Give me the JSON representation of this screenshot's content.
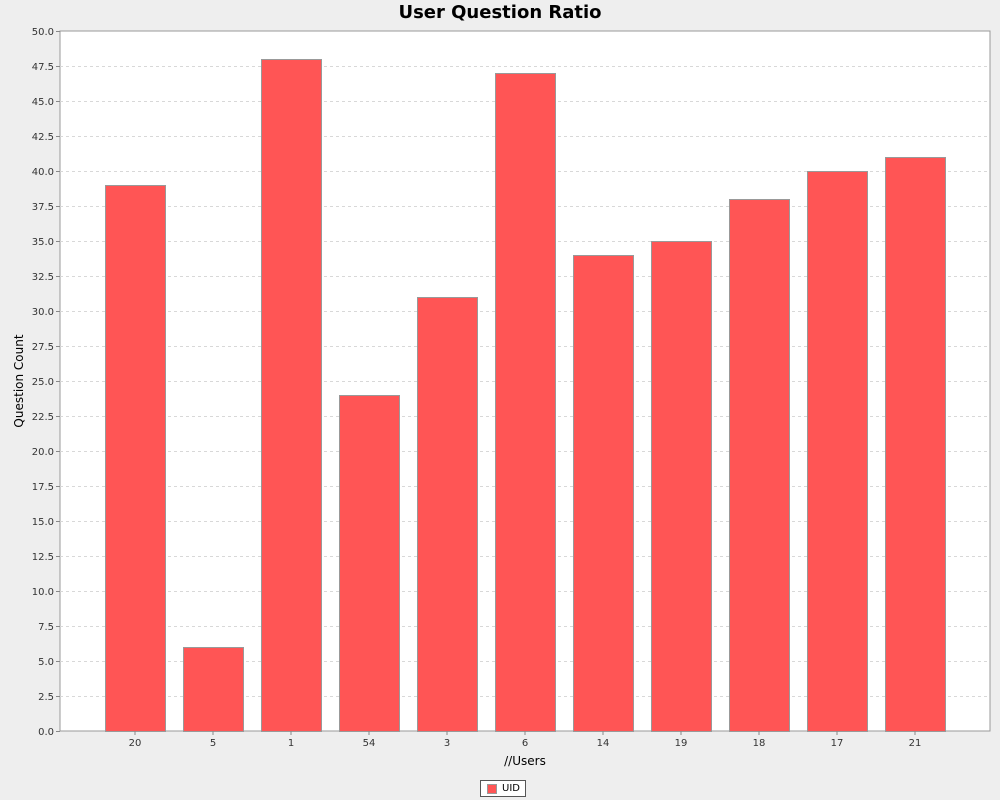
{
  "chart_data": {
    "type": "bar",
    "title": "User Question Ratio",
    "xlabel": "//Users",
    "ylabel": "Question Count",
    "categories": [
      "20",
      "5",
      "1",
      "54",
      "3",
      "6",
      "14",
      "19",
      "18",
      "17",
      "21"
    ],
    "series": [
      {
        "name": "UID",
        "values": [
          39,
          6,
          48,
          24,
          31,
          47,
          34,
          35,
          38,
          40,
          41
        ],
        "color": "#ff5555"
      }
    ],
    "ylim": [
      0,
      50
    ],
    "ytick_step": 2.5,
    "grid": true,
    "legend_position": "bottom-center"
  }
}
